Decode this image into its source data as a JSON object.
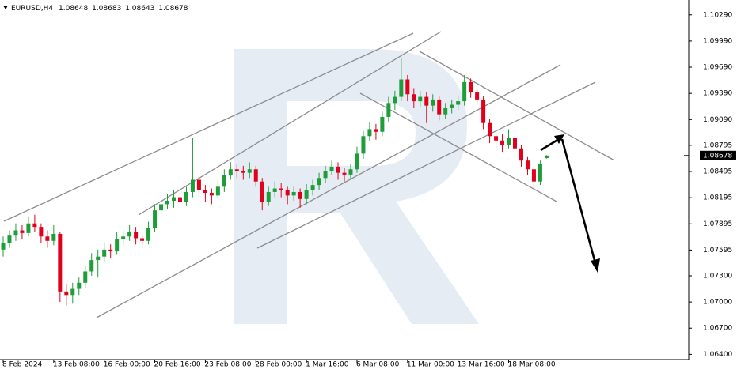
{
  "chart_data": {
    "type": "candlestick",
    "symbol": "EURUSD,H4",
    "up_color": "#1f9d3a",
    "down_color": "#e0001b",
    "grid": false,
    "ylim": [
      1.0634,
      1.1046
    ],
    "yticks": [
      {
        "value": 1.064,
        "label": "1.06400"
      },
      {
        "value": 1.067,
        "label": "1.06700"
      },
      {
        "value": 1.07,
        "label": "1.07000"
      },
      {
        "value": 1.073,
        "label": "1.07300"
      },
      {
        "value": 1.07595,
        "label": "1.07595"
      },
      {
        "value": 1.07895,
        "label": "1.07895"
      },
      {
        "value": 1.08195,
        "label": "1.08195"
      },
      {
        "value": 1.08495,
        "label": "1.08495"
      },
      {
        "value": 1.08795,
        "label": "1.08795"
      },
      {
        "value": 1.0909,
        "label": "1.09090"
      },
      {
        "value": 1.0939,
        "label": "1.09390"
      },
      {
        "value": 1.0969,
        "label": "1.09690"
      },
      {
        "value": 1.0999,
        "label": "1.09990"
      },
      {
        "value": 1.1029,
        "label": "1.10290"
      }
    ],
    "xlim": [
      -0.5,
      108.5
    ],
    "xticks": [
      {
        "value": 0,
        "label": "8 Feb 2024"
      },
      {
        "value": 8,
        "label": "13 Feb 08:00"
      },
      {
        "value": 16,
        "label": "16 Feb 00:00"
      },
      {
        "value": 24,
        "label": "20 Feb 16:00"
      },
      {
        "value": 32,
        "label": "23 Feb 08:00"
      },
      {
        "value": 40,
        "label": "28 Feb 00:00"
      },
      {
        "value": 48,
        "label": "1 Mar 16:00"
      },
      {
        "value": 56,
        "label": "6 Mar 08:00"
      },
      {
        "value": 64,
        "label": "11 Mar 00:00"
      },
      {
        "value": 72,
        "label": "13 Mar 16:00"
      },
      {
        "value": 80,
        "label": "18 Mar 08:00"
      }
    ],
    "candles": [
      [
        1.076,
        1.0775,
        1.0752,
        1.0768
      ],
      [
        1.0768,
        1.0782,
        1.0762,
        1.0776
      ],
      [
        1.0776,
        1.079,
        1.077,
        1.0782
      ],
      [
        1.0782,
        1.0788,
        1.0772,
        1.0779
      ],
      [
        1.0779,
        1.0798,
        1.0775,
        1.079
      ],
      [
        1.079,
        1.08,
        1.078,
        1.0786
      ],
      [
        1.0786,
        1.079,
        1.0768,
        1.0775
      ],
      [
        1.0775,
        1.0782,
        1.0762,
        1.077
      ],
      [
        1.077,
        1.0788,
        1.0765,
        1.0778
      ],
      [
        1.0778,
        1.078,
        1.07,
        1.0712
      ],
      [
        1.0712,
        1.072,
        1.0696,
        1.0708
      ],
      [
        1.0708,
        1.0722,
        1.0698,
        1.0715
      ],
      [
        1.0715,
        1.0728,
        1.0708,
        1.0722
      ],
      [
        1.0722,
        1.0742,
        1.0716,
        1.0735
      ],
      [
        1.0735,
        1.0756,
        1.073,
        1.0748
      ],
      [
        1.0748,
        1.076,
        1.0728,
        1.0752
      ],
      [
        1.0752,
        1.0768,
        1.0745,
        1.076
      ],
      [
        1.076,
        1.0766,
        1.075,
        1.0758
      ],
      [
        1.0758,
        1.078,
        1.0754,
        1.0772
      ],
      [
        1.0772,
        1.0782,
        1.0765,
        1.0775
      ],
      [
        1.0775,
        1.0788,
        1.077,
        1.078
      ],
      [
        1.078,
        1.0786,
        1.0766,
        1.0773
      ],
      [
        1.0773,
        1.0778,
        1.0762,
        1.077
      ],
      [
        1.077,
        1.0792,
        1.0766,
        1.0785
      ],
      [
        1.0785,
        1.0812,
        1.078,
        1.0805
      ],
      [
        1.0805,
        1.082,
        1.0798,
        1.0812
      ],
      [
        1.0812,
        1.0824,
        1.0806,
        1.0816
      ],
      [
        1.0816,
        1.0828,
        1.0808,
        1.082
      ],
      [
        1.082,
        1.0825,
        1.0808,
        1.0815
      ],
      [
        1.0815,
        1.0832,
        1.081,
        1.0826
      ],
      [
        1.0826,
        1.0888,
        1.082,
        1.084
      ],
      [
        1.084,
        1.0845,
        1.082,
        1.0828
      ],
      [
        1.0828,
        1.0834,
        1.0815,
        1.0825
      ],
      [
        1.0825,
        1.083,
        1.0812,
        1.0822
      ],
      [
        1.0822,
        1.084,
        1.0818,
        1.0832
      ],
      [
        1.0832,
        1.0852,
        1.0826,
        1.0845
      ],
      [
        1.0845,
        1.086,
        1.084,
        1.0852
      ],
      [
        1.0852,
        1.0858,
        1.0842,
        1.085
      ],
      [
        1.085,
        1.0856,
        1.084,
        1.0848
      ],
      [
        1.0848,
        1.086,
        1.0842,
        1.0852
      ],
      [
        1.0852,
        1.0856,
        1.0832,
        1.0838
      ],
      [
        1.0838,
        1.0842,
        1.0805,
        1.0815
      ],
      [
        1.0815,
        1.0832,
        1.081,
        1.0826
      ],
      [
        1.0826,
        1.0838,
        1.082,
        1.083
      ],
      [
        1.083,
        1.0836,
        1.082,
        1.0828
      ],
      [
        1.0828,
        1.0832,
        1.0812,
        1.0822
      ],
      [
        1.0822,
        1.0832,
        1.0816,
        1.0826
      ],
      [
        1.0826,
        1.083,
        1.0808,
        1.0818
      ],
      [
        1.0818,
        1.0835,
        1.0812,
        1.0828
      ],
      [
        1.0828,
        1.084,
        1.0822,
        1.0834
      ],
      [
        1.0834,
        1.0848,
        1.0828,
        1.0842
      ],
      [
        1.0842,
        1.0856,
        1.0836,
        1.085
      ],
      [
        1.085,
        1.0862,
        1.0845,
        1.0855
      ],
      [
        1.0855,
        1.086,
        1.084,
        1.0848
      ],
      [
        1.0848,
        1.0854,
        1.0838,
        1.0846
      ],
      [
        1.0846,
        1.0858,
        1.084,
        1.0852
      ],
      [
        1.0852,
        1.0878,
        1.0848,
        1.087
      ],
      [
        1.087,
        1.0896,
        1.0864,
        1.089
      ],
      [
        1.089,
        1.0906,
        1.0884,
        1.0898
      ],
      [
        1.0898,
        1.0904,
        1.0886,
        1.0895
      ],
      [
        1.0895,
        1.0918,
        1.089,
        1.0912
      ],
      [
        1.0912,
        1.0935,
        1.0906,
        1.0928
      ],
      [
        1.0928,
        1.0942,
        1.092,
        1.0935
      ],
      [
        1.0935,
        1.098,
        1.093,
        1.0955
      ],
      [
        1.0955,
        1.096,
        1.093,
        1.0938
      ],
      [
        1.0938,
        1.0945,
        1.0922,
        1.093
      ],
      [
        1.093,
        1.0942,
        1.0924,
        1.0935
      ],
      [
        1.0935,
        1.094,
        1.0905,
        1.0925
      ],
      [
        1.0925,
        1.0938,
        1.0918,
        1.0932
      ],
      [
        1.0932,
        1.0936,
        1.0908,
        1.0915
      ],
      [
        1.0915,
        1.0928,
        1.091,
        1.0922
      ],
      [
        1.0922,
        1.0932,
        1.0916,
        1.0926
      ],
      [
        1.0926,
        1.0936,
        1.092,
        1.093
      ],
      [
        1.093,
        1.096,
        1.0925,
        1.0952
      ],
      [
        1.0952,
        1.0956,
        1.0934,
        1.094
      ],
      [
        1.094,
        1.0944,
        1.0926,
        1.0932
      ],
      [
        1.0932,
        1.0936,
        1.0898,
        1.0905
      ],
      [
        1.0905,
        1.091,
        1.0882,
        1.089
      ],
      [
        1.089,
        1.0896,
        1.0876,
        1.0885
      ],
      [
        1.0885,
        1.0892,
        1.0872,
        1.088
      ],
      [
        1.088,
        1.0898,
        1.0876,
        1.0888
      ],
      [
        1.0888,
        1.0892,
        1.0868,
        1.0876
      ],
      [
        1.0876,
        1.088,
        1.0855,
        1.0862
      ],
      [
        1.0862,
        1.0866,
        1.0845,
        1.0852
      ],
      [
        1.0852,
        1.0856,
        1.083,
        1.0838
      ],
      [
        1.0838,
        1.0862,
        1.0834,
        1.0858
      ],
      [
        1.08648,
        1.08683,
        1.08643,
        1.08678
      ]
    ]
  }
}
